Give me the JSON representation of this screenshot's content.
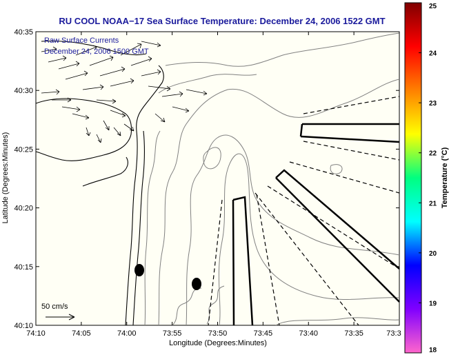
{
  "chart_data": {
    "type": "map",
    "title": "RU COOL  NOAA−17  Sea Surface Temperature:  December 24, 2006 1522 GMT",
    "xlabel": "Longitude (Degrees:Minutes)",
    "ylabel": "Latitude (Degrees:Minutes)",
    "x_ticks": [
      "74:10",
      "74:05",
      "74:00",
      "73:55",
      "73:50",
      "73:45",
      "73:40",
      "73:35",
      "73:3"
    ],
    "y_ticks": [
      "40:10",
      "40:15",
      "40:20",
      "40:25",
      "40:30",
      "40:35"
    ],
    "xlim_minutes_west": [
      70,
      30
    ],
    "ylim_minutes": [
      10,
      35
    ],
    "annotation_line1": "Raw Surface Currents",
    "annotation_line2": "December 24, 2006 1500 GMT",
    "scale_label": "50 cm/s",
    "colorbar": {
      "label": "Temperature (°C)",
      "min": 18,
      "max": 25,
      "ticks": [
        "18",
        "19",
        "20",
        "21",
        "22",
        "23",
        "24",
        "25"
      ],
      "colormap": [
        "#ff66cc",
        "#8000ff",
        "#0000ff",
        "#00ffff",
        "#00ff80",
        "#ffff00",
        "#ff8000",
        "#ff0000",
        "#800000"
      ]
    },
    "colors": {
      "background": "#fffff5",
      "coast": "#000000",
      "contour": "#808080",
      "title": "#1a1a9c"
    }
  }
}
